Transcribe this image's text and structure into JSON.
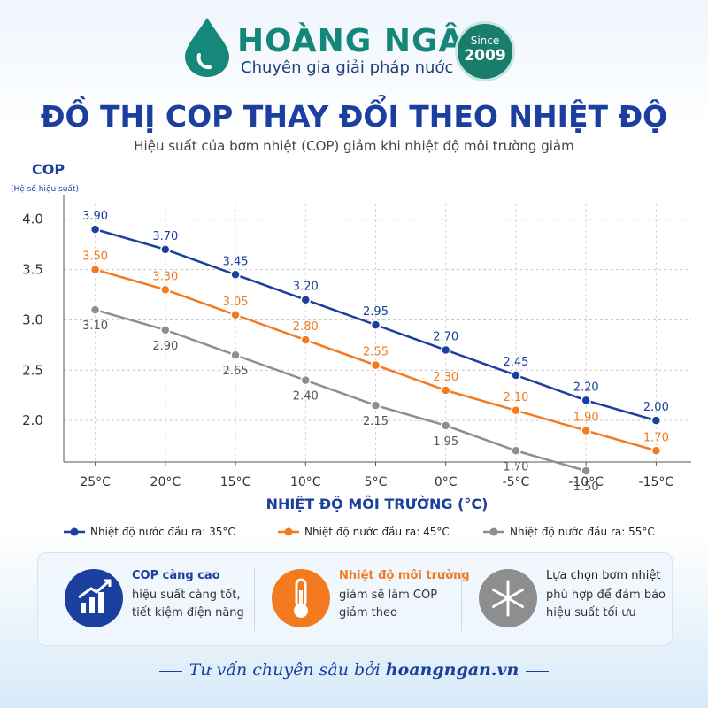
{
  "header": {
    "brand": "HOÀNG NGÂN",
    "tagline": "Chuyên gia giải pháp nước",
    "since": "Since",
    "year": "2009"
  },
  "chart_data": {
    "type": "line",
    "title": "ĐỒ THỊ COP THAY ĐỔI THEO NHIỆT ĐỘ",
    "subtitle": "Hiệu suất của bơm nhiệt (COP) giảm khi nhiệt độ môi trường giảm",
    "y_label": "COP",
    "y_sublabel": "(Hệ số hiệu suất)",
    "x_label": "NHIỆT ĐỘ MÔI TRƯỜNG (°C)",
    "categories": [
      "25°C",
      "20°C",
      "15°C",
      "10°C",
      "5°C",
      "0°C",
      "-5°C",
      "-10°C",
      "-15°C"
    ],
    "series": [
      {
        "name": "Nhiệt độ nước đầu ra: 35°C",
        "color": "#1b3f9e",
        "label_side": "above",
        "values": [
          3.9,
          3.7,
          3.45,
          3.2,
          2.95,
          2.7,
          2.45,
          2.2,
          2.0
        ],
        "value_labels": [
          "3.90",
          "3.70",
          "3.45",
          "3.20",
          "2.95",
          "2.70",
          "2.45",
          "2.20",
          "2.00"
        ]
      },
      {
        "name": "Nhiệt độ nước đầu ra: 45°C",
        "color": "#f37a1f",
        "label_side": "above",
        "values": [
          3.5,
          3.3,
          3.05,
          2.8,
          2.55,
          2.3,
          2.1,
          1.9,
          1.7
        ],
        "value_labels": [
          "3.50",
          "3.30",
          "3.05",
          "2.80",
          "2.55",
          "2.30",
          "2.10",
          "1.90",
          "1.70"
        ]
      },
      {
        "name": "Nhiệt độ nước đầu ra: 55°C",
        "color": "#8e8e8e",
        "label_side": "below",
        "values": [
          3.1,
          2.9,
          2.65,
          2.4,
          2.15,
          1.95,
          1.7,
          1.5,
          null
        ],
        "value_labels": [
          "3.10",
          "2.90",
          "2.65",
          "2.40",
          "2.15",
          "1.95",
          "1.70",
          "1.50",
          null
        ]
      }
    ],
    "ylim": [
      1.5,
      4.2
    ],
    "yticks": [
      {
        "value": 4,
        "label": "4.0"
      },
      3.5,
      {
        "value": 3,
        "label": "3.0"
      },
      2.5,
      {
        "value": 2,
        "label": "2.0"
      }
    ],
    "grid": true
  },
  "cards": [
    {
      "title": "COP càng cao",
      "text": "hiệu suất càng tốt, tiết kiệm điện năng"
    },
    {
      "title": "Nhiệt độ môi trường",
      "text": "giảm sẽ làm COP giảm theo"
    },
    {
      "title": "Lựa chọn bơm nhiệt",
      "text": "phù hợp để đảm bảo hiệu suất tối ưu"
    }
  ],
  "footer": {
    "text": "Tư vấn chuyên sâu bởi",
    "site": "hoangngan.vn"
  }
}
